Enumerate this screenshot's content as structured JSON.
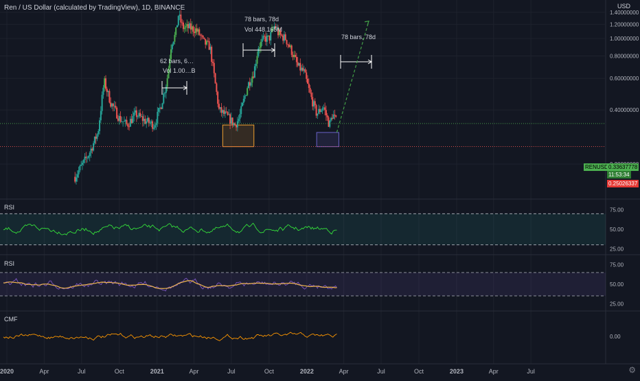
{
  "header": {
    "title": "Ren / US Dollar (calculated by TradingView), 1D, BINANCE",
    "currency": "USD"
  },
  "colors": {
    "background": "#131722",
    "grid": "#1e222d",
    "up": "#26a69a",
    "up_bright": "#4caf50",
    "down": "#ef5350",
    "rsi1": "#35e03a",
    "rsi2": "#7e57c2",
    "rsi2_ma": "#f0b64d",
    "cmf": "#ff9800",
    "target": "#43a047"
  },
  "chart_data": [
    {
      "type": "line",
      "name": "price",
      "title": "Ren / US Dollar (calculated by TradingView), 1D, BINANCE",
      "y_scale": "log",
      "ylim": [
        0.2,
        1.5
      ],
      "xlim": [
        "2020-01-01",
        "2023-09-30"
      ],
      "y_ticks": [
        "1.40000000",
        "1.20000000",
        "1.00000000",
        "0.80000000",
        "0.60000000",
        "0.40000000",
        "0.20000000"
      ],
      "x": [
        "2020-06-15",
        "2020-07-20",
        "2020-08-10",
        "2020-08-25",
        "2020-09-10",
        "2020-10-01",
        "2020-10-20",
        "2020-11-10",
        "2020-12-01",
        "2020-12-25",
        "2021-01-10",
        "2021-01-25",
        "2021-02-05",
        "2021-02-15",
        "2021-02-22",
        "2021-03-05",
        "2021-03-20",
        "2021-04-05",
        "2021-04-15",
        "2021-04-25",
        "2021-05-10",
        "2021-05-20",
        "2021-06-01",
        "2021-06-20",
        "2021-07-10",
        "2021-07-20",
        "2021-08-10",
        "2021-08-25",
        "2021-09-05",
        "2021-09-20",
        "2021-10-01",
        "2021-10-15",
        "2021-10-25",
        "2021-11-10",
        "2021-11-25",
        "2021-12-10",
        "2021-12-25",
        "2022-01-10",
        "2022-01-25",
        "2022-02-10",
        "2022-02-25",
        "2022-03-05",
        "2022-03-15"
      ],
      "values": [
        0.17,
        0.23,
        0.3,
        0.58,
        0.44,
        0.36,
        0.33,
        0.38,
        0.35,
        0.33,
        0.42,
        0.58,
        0.95,
        1.05,
        1.35,
        1.15,
        1.15,
        1.12,
        1.05,
        0.95,
        0.9,
        0.62,
        0.4,
        0.37,
        0.33,
        0.36,
        0.55,
        0.65,
        0.9,
        1.0,
        1.0,
        1.18,
        1.05,
        1.0,
        0.85,
        0.7,
        0.65,
        0.48,
        0.38,
        0.42,
        0.33,
        0.38,
        0.34
      ],
      "annotations": [
        {
          "label_lines": [
            "62 bars, 6…",
            "Vol 1.00…B"
          ],
          "text": "62 bars, 6… Vol 1.00…B"
        },
        {
          "label_lines": [
            "78 bars, 78d",
            "Vol 448.165M"
          ],
          "text": "78 bars, 78d Vol 448.165M"
        },
        {
          "label_lines": [
            "78 bars, 78d"
          ],
          "text": "78 bars, 78d"
        }
      ],
      "projection": {
        "from": [
          "2022-03-15",
          0.3
        ],
        "to": [
          "2022-06-01",
          1.25
        ]
      },
      "zones": [
        {
          "x": [
            "2021-06-10",
            "2021-08-25"
          ],
          "y": [
            0.25,
            0.33
          ],
          "color": "#f0a030"
        },
        {
          "x": [
            "2022-01-25",
            "2022-03-20"
          ],
          "y": [
            0.25,
            0.3
          ],
          "color": "#6a62c8"
        }
      ],
      "levels": [
        {
          "value": 0.33637778,
          "style": "dotted",
          "color": "#4caf50"
        },
        {
          "value": 0.25026337,
          "style": "dotted",
          "color": "#ef5350"
        }
      ],
      "last_price": {
        "symbol": "RENUSD",
        "value": "0.33637778",
        "countdown": "11:53:34"
      },
      "support_label": "0.25026337"
    },
    {
      "type": "line",
      "name": "RSI",
      "title": "RSI",
      "ylim": [
        20,
        80
      ],
      "bands": [
        30,
        70
      ],
      "y_ticks": [
        "75.00",
        "50.00",
        "25.00"
      ]
    },
    {
      "type": "line",
      "name": "RSI",
      "title": "RSI",
      "ylim": [
        20,
        80
      ],
      "bands": [
        35,
        65
      ],
      "y_ticks": [
        "75.00",
        "50.00",
        "25.00"
      ]
    },
    {
      "type": "line",
      "name": "CMF",
      "title": "CMF",
      "ylim": [
        -0.5,
        0.5
      ],
      "y_ticks": [
        "0.00"
      ]
    }
  ],
  "x_axis": {
    "labels": [
      {
        "text": "2020",
        "date": "2020-01-01",
        "bold": true
      },
      {
        "text": "Apr",
        "date": "2020-04-01"
      },
      {
        "text": "Jul",
        "date": "2020-07-01"
      },
      {
        "text": "Oct",
        "date": "2020-10-01"
      },
      {
        "text": "2021",
        "date": "2021-01-01",
        "bold": true
      },
      {
        "text": "Apr",
        "date": "2021-04-01"
      },
      {
        "text": "Jul",
        "date": "2021-07-01"
      },
      {
        "text": "Oct",
        "date": "2021-10-01"
      },
      {
        "text": "2022",
        "date": "2022-01-01",
        "bold": true
      },
      {
        "text": "Apr",
        "date": "2022-04-01"
      },
      {
        "text": "Jul",
        "date": "2022-07-01"
      },
      {
        "text": "Oct",
        "date": "2022-10-01"
      },
      {
        "text": "2023",
        "date": "2023-01-01",
        "bold": true
      },
      {
        "text": "Apr",
        "date": "2023-04-01"
      },
      {
        "text": "Jul",
        "date": "2023-07-01"
      }
    ]
  },
  "settings_icon": "gear-icon"
}
